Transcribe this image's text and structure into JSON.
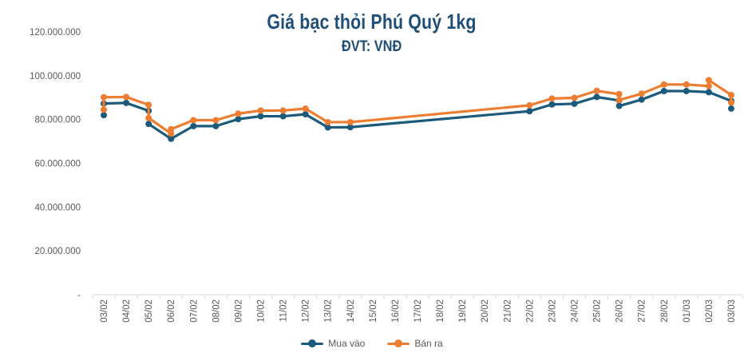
{
  "chart_data": {
    "type": "line",
    "title": "Giá bạc thỏi Phú Quý 1kg",
    "subtitle": "ĐVT: VNĐ",
    "ylim": [
      0,
      120000000
    ],
    "y_ticks": [
      0,
      20000000,
      40000000,
      60000000,
      80000000,
      100000000,
      120000000
    ],
    "y_tick_labels": [
      "-",
      "20.000.000",
      "40.000.000",
      "60.000.000",
      "80.000.000",
      "100.000.000",
      "120.000.000"
    ],
    "categories": [
      "03/02",
      "04/02",
      "05/02",
      "06/02",
      "07/02",
      "08/02",
      "09/02",
      "10/02",
      "11/02",
      "12/02",
      "13/02",
      "14/02",
      "15/02",
      "16/02",
      "17/02",
      "18/02",
      "19/02",
      "20/02",
      "21/02",
      "22/02",
      "23/02",
      "24/02",
      "25/02",
      "26/02",
      "27/02",
      "28/02",
      "01/03",
      "02/03",
      "03/03"
    ],
    "series": [
      {
        "name": "Mua vào",
        "color": "#1b5a7a",
        "points": [
          {
            "x": 0,
            "y": 82000000
          },
          {
            "x": 0,
            "y": 87300000
          },
          {
            "x": 1,
            "y": 87600000
          },
          {
            "x": 2,
            "y": 84000000
          },
          {
            "x": 2,
            "y": 78000000
          },
          {
            "x": 3,
            "y": 71200000
          },
          {
            "x": 4,
            "y": 77000000
          },
          {
            "x": 5,
            "y": 77000000
          },
          {
            "x": 6,
            "y": 80200000
          },
          {
            "x": 7,
            "y": 81500000
          },
          {
            "x": 8,
            "y": 81500000
          },
          {
            "x": 9,
            "y": 82400000
          },
          {
            "x": 10,
            "y": 76400000
          },
          {
            "x": 11,
            "y": 76500000
          },
          {
            "x": 19,
            "y": 83800000
          },
          {
            "x": 20,
            "y": 86900000
          },
          {
            "x": 21,
            "y": 87200000
          },
          {
            "x": 22,
            "y": 90300000
          },
          {
            "x": 23,
            "y": 88700000
          },
          {
            "x": 23,
            "y": 86200000
          },
          {
            "x": 24,
            "y": 89100000
          },
          {
            "x": 25,
            "y": 93000000
          },
          {
            "x": 26,
            "y": 93000000
          },
          {
            "x": 27,
            "y": 92500000
          },
          {
            "x": 28,
            "y": 88500000
          },
          {
            "x": 28,
            "y": 85000000
          }
        ]
      },
      {
        "name": "Bán ra",
        "color": "#ed7d31",
        "points": [
          {
            "x": 0,
            "y": 84500000
          },
          {
            "x": 0,
            "y": 90200000
          },
          {
            "x": 1,
            "y": 90300000
          },
          {
            "x": 2,
            "y": 86700000
          },
          {
            "x": 2,
            "y": 80700000
          },
          {
            "x": 3,
            "y": 73600000
          },
          {
            "x": 3,
            "y": 75600000
          },
          {
            "x": 4,
            "y": 79700000
          },
          {
            "x": 5,
            "y": 79700000
          },
          {
            "x": 6,
            "y": 82700000
          },
          {
            "x": 7,
            "y": 84100000
          },
          {
            "x": 8,
            "y": 84100000
          },
          {
            "x": 9,
            "y": 85000000
          },
          {
            "x": 10,
            "y": 78800000
          },
          {
            "x": 11,
            "y": 78800000
          },
          {
            "x": 19,
            "y": 86500000
          },
          {
            "x": 20,
            "y": 89600000
          },
          {
            "x": 21,
            "y": 89900000
          },
          {
            "x": 22,
            "y": 93100000
          },
          {
            "x": 23,
            "y": 91600000
          },
          {
            "x": 23,
            "y": 88900000
          },
          {
            "x": 24,
            "y": 91800000
          },
          {
            "x": 25,
            "y": 96000000
          },
          {
            "x": 26,
            "y": 96000000
          },
          {
            "x": 27,
            "y": 95300000
          },
          {
            "x": 27,
            "y": 98000000
          },
          {
            "x": 28,
            "y": 91200000
          },
          {
            "x": 28,
            "y": 87700000
          }
        ]
      }
    ],
    "legend_position": "bottom",
    "grid": false
  }
}
